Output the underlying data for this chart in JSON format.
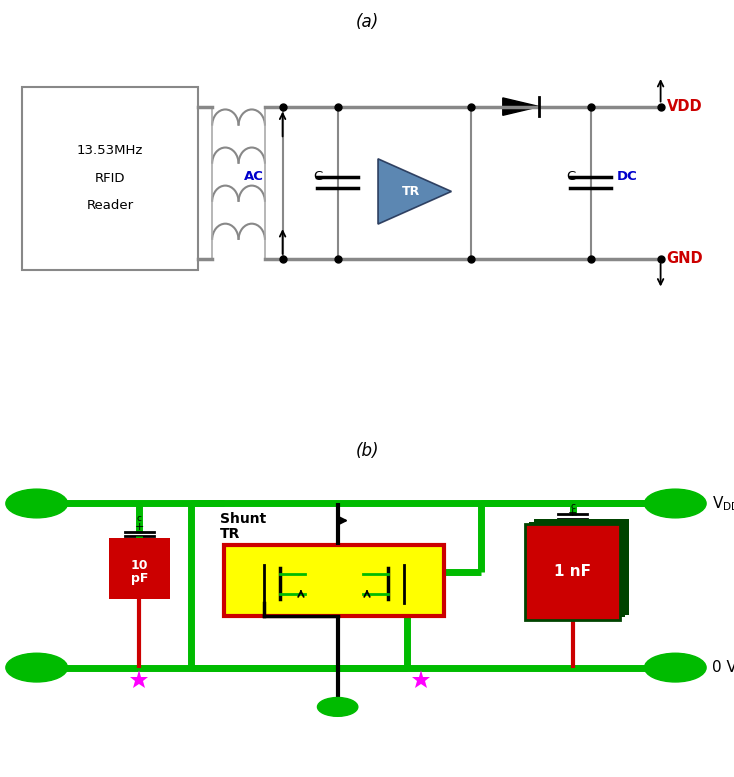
{
  "fig_width": 7.34,
  "fig_height": 7.77,
  "bg_color": "#ffffff",
  "label_a": "(a)",
  "label_b": "(b)",
  "diagram_a": {
    "reader_text": [
      "13.53MHz",
      "RFID",
      "Reader"
    ],
    "vdd_color": "#cc0000",
    "gnd_color": "#cc0000",
    "ac_color": "#0000cc",
    "dc_color": "#0000cc",
    "tr_color": "#4a7aaa"
  },
  "diagram_b": {
    "green_color": "#00bb00",
    "red_color": "#cc0000",
    "dark_green_color": "#004400",
    "yellow_color": "#ffff00",
    "black_color": "#000000",
    "pink_color": "#ff00ff",
    "lw_rail": 5.0
  }
}
